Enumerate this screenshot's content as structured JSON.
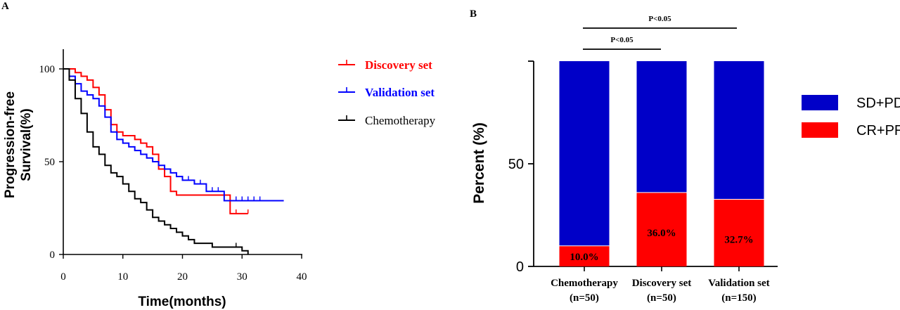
{
  "panels": {
    "a_label": "A",
    "b_label": "B"
  },
  "chart_data": [
    {
      "type": "line",
      "subtype": "kaplan-meier",
      "title": "",
      "xlabel": "Time(months)",
      "ylabel": "Progression-free Survival(%)",
      "ylabel_lines": [
        "Progression-free",
        "Survival(%)"
      ],
      "xlim": [
        0,
        40
      ],
      "ylim": [
        0,
        100
      ],
      "xticks": [
        0,
        10,
        20,
        30,
        40
      ],
      "yticks": [
        0,
        50,
        100
      ],
      "legend_position": "right",
      "series": [
        {
          "name": "Discovery set",
          "color": "#ff0000",
          "x": [
            0,
            2,
            3,
            4,
            5,
            6,
            7,
            8,
            9,
            10,
            11,
            12,
            13,
            14,
            15,
            16,
            17,
            18,
            19,
            20,
            26,
            28,
            31
          ],
          "y": [
            100,
            98,
            96,
            94,
            90,
            86,
            78,
            70,
            66,
            64,
            64,
            62,
            60,
            58,
            54,
            46,
            42,
            34,
            32,
            32,
            32,
            22,
            22
          ],
          "censor_x": [
            29,
            31
          ]
        },
        {
          "name": "Validation set",
          "color": "#0000ff",
          "x": [
            0,
            1,
            2,
            3,
            4,
            5,
            6,
            7,
            8,
            9,
            10,
            11,
            12,
            13,
            14,
            15,
            16,
            17,
            18,
            19,
            20,
            22,
            24,
            27,
            37
          ],
          "y": [
            100,
            96,
            92,
            88,
            86,
            84,
            80,
            74,
            66,
            62,
            60,
            58,
            56,
            54,
            52,
            50,
            48,
            46,
            44,
            42,
            40,
            38,
            34,
            29,
            29
          ],
          "censor_x": [
            14,
            16,
            18,
            20,
            21,
            22,
            23,
            24,
            25,
            26,
            29,
            30,
            31,
            32,
            33
          ]
        },
        {
          "name": "Chemotherapy",
          "color": "#000000",
          "x": [
            0,
            1,
            2,
            3,
            4,
            5,
            6,
            7,
            8,
            9,
            10,
            11,
            12,
            13,
            14,
            15,
            16,
            17,
            18,
            19,
            20,
            21,
            22,
            25,
            30,
            31
          ],
          "y": [
            100,
            94,
            84,
            76,
            66,
            58,
            54,
            48,
            44,
            42,
            38,
            34,
            30,
            28,
            24,
            20,
            18,
            16,
            14,
            12,
            10,
            8,
            6,
            4,
            2,
            0
          ],
          "censor_x": [
            29
          ]
        }
      ]
    },
    {
      "type": "bar",
      "subtype": "stacked-percent",
      "title": "",
      "xlabel": "",
      "ylabel": "Percent (%)",
      "ylim": [
        0,
        100
      ],
      "yticks": [
        0,
        50
      ],
      "legend_position": "right",
      "categories": [
        {
          "line1": "Chemotherapy",
          "line2": "(n=50)"
        },
        {
          "line1": "Discovery set",
          "line2": "(n=50)"
        },
        {
          "line1": "Validation set",
          "line2": "(n=150)"
        }
      ],
      "series": [
        {
          "name": "CR+PR",
          "color": "#ff0000",
          "values": [
            10.0,
            36.0,
            32.7
          ],
          "labels": [
            "10.0%",
            "36.0%",
            "32.7%"
          ]
        },
        {
          "name": "SD+PD",
          "color": "#0000c8",
          "values": [
            90.0,
            64.0,
            67.3
          ]
        }
      ],
      "legend_order": [
        "SD+PD",
        "CR+PR"
      ],
      "annotations": [
        {
          "text": "P<0.05",
          "from": 0,
          "to": 1
        },
        {
          "text": "P<0.05",
          "from": 0,
          "to": 2
        }
      ]
    }
  ]
}
